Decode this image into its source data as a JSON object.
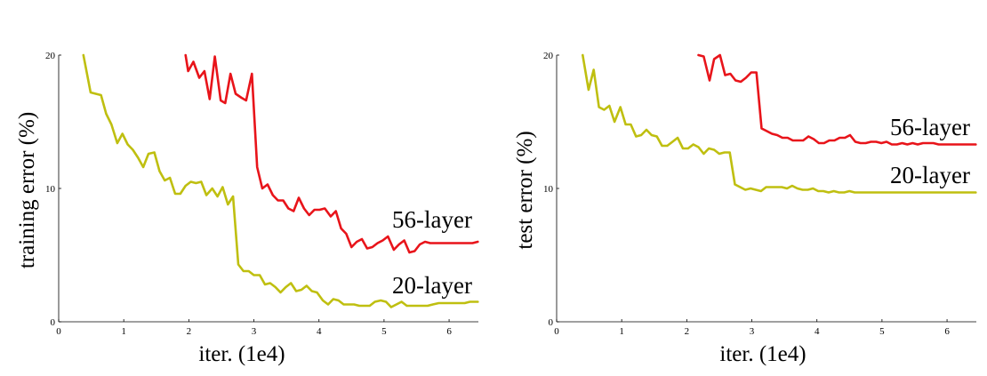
{
  "colors": {
    "56-layer": "#e8141a",
    "20-layer": "#bfbf10",
    "axis": "#000000"
  },
  "chart_data": [
    {
      "type": "line",
      "title": "",
      "xlabel": "iter. (1e4)",
      "ylabel": "training error (%)",
      "xlim": [
        0,
        6.45
      ],
      "ylim": [
        0,
        20
      ],
      "xticks": [
        "0",
        "1",
        "2",
        "3",
        "4",
        "5",
        "6"
      ],
      "yticks": [
        "0",
        "10",
        "20"
      ],
      "grid": false,
      "legend": "inline labels at right",
      "series": [
        {
          "name": "56-layer",
          "color": "#e8141a",
          "x": [
            1.95,
            1.99,
            2.07,
            2.16,
            2.24,
            2.32,
            2.4,
            2.49,
            2.56,
            2.64,
            2.72,
            2.81,
            2.88,
            2.97,
            3.05,
            3.13,
            3.21,
            3.29,
            3.37,
            3.45,
            3.53,
            3.61,
            3.69,
            3.77,
            3.85,
            3.93,
            4.01,
            4.09,
            4.18,
            4.26,
            4.34,
            4.42,
            4.5,
            4.58,
            4.66,
            4.74,
            4.82,
            4.9,
            4.98,
            5.06,
            5.15,
            5.23,
            5.31,
            5.39,
            5.47,
            5.55,
            5.63,
            5.71,
            5.8,
            5.88,
            5.96,
            6.04,
            6.12,
            6.2,
            6.28,
            6.36,
            6.44
          ],
          "y": [
            20.0,
            18.8,
            19.5,
            18.3,
            18.8,
            16.7,
            19.9,
            16.6,
            16.4,
            18.6,
            17.1,
            16.8,
            16.6,
            18.6,
            11.6,
            10.0,
            10.3,
            9.5,
            9.1,
            9.1,
            8.5,
            8.3,
            9.3,
            8.5,
            8.0,
            8.4,
            8.4,
            8.5,
            7.9,
            8.3,
            7.0,
            6.6,
            5.6,
            6.0,
            6.2,
            5.5,
            5.6,
            5.9,
            6.1,
            6.4,
            5.4,
            5.8,
            6.1,
            5.2,
            5.3,
            5.8,
            6.0,
            5.9,
            5.9,
            5.9,
            5.9,
            5.9,
            5.9,
            5.9,
            5.9,
            5.9,
            6.0
          ]
        },
        {
          "name": "20-layer",
          "color": "#bfbf10",
          "x": [
            0.38,
            0.49,
            0.57,
            0.65,
            0.73,
            0.81,
            0.9,
            0.98,
            1.06,
            1.14,
            1.22,
            1.3,
            1.38,
            1.47,
            1.55,
            1.63,
            1.71,
            1.79,
            1.87,
            1.95,
            2.03,
            2.11,
            2.19,
            2.27,
            2.36,
            2.44,
            2.52,
            2.6,
            2.68,
            2.76,
            2.84,
            2.92,
            3.0,
            3.09,
            3.17,
            3.25,
            3.33,
            3.41,
            3.49,
            3.57,
            3.65,
            3.73,
            3.81,
            3.89,
            3.97,
            4.06,
            4.14,
            4.22,
            4.3,
            4.38,
            4.46,
            4.54,
            4.62,
            4.7,
            4.78,
            4.86,
            4.95,
            5.03,
            5.11,
            5.19,
            5.27,
            5.35,
            5.43,
            5.51,
            5.59,
            5.67,
            5.75,
            5.84,
            5.92,
            6.0,
            6.08,
            6.16,
            6.24,
            6.32,
            6.44
          ],
          "y": [
            20.0,
            17.2,
            17.1,
            17.0,
            15.6,
            14.8,
            13.4,
            14.1,
            13.3,
            12.9,
            12.3,
            11.6,
            12.6,
            12.7,
            11.3,
            10.6,
            10.8,
            9.6,
            9.6,
            10.2,
            10.5,
            10.4,
            10.5,
            9.5,
            10.0,
            9.4,
            10.1,
            8.8,
            9.4,
            4.3,
            3.8,
            3.8,
            3.5,
            3.5,
            2.8,
            2.9,
            2.6,
            2.2,
            2.6,
            2.9,
            2.3,
            2.4,
            2.7,
            2.3,
            2.2,
            1.6,
            1.3,
            1.7,
            1.6,
            1.3,
            1.3,
            1.3,
            1.2,
            1.2,
            1.2,
            1.5,
            1.6,
            1.5,
            1.1,
            1.3,
            1.5,
            1.2,
            1.2,
            1.2,
            1.2,
            1.2,
            1.3,
            1.4,
            1.4,
            1.4,
            1.4,
            1.4,
            1.4,
            1.5,
            1.5
          ]
        }
      ]
    },
    {
      "type": "line",
      "title": "",
      "xlabel": "iter. (1e4)",
      "ylabel": "test error (%)",
      "xlim": [
        0,
        6.45
      ],
      "ylim": [
        0,
        20
      ],
      "xticks": [
        "0",
        "1",
        "2",
        "3",
        "4",
        "5",
        "6"
      ],
      "yticks": [
        "0",
        "10",
        "20"
      ],
      "grid": false,
      "legend": "inline labels at right",
      "series": [
        {
          "name": "56-layer",
          "color": "#e8141a",
          "x": [
            2.18,
            2.26,
            2.35,
            2.42,
            2.51,
            2.59,
            2.67,
            2.75,
            2.83,
            2.91,
            2.99,
            3.07,
            3.15,
            3.23,
            3.31,
            3.39,
            3.47,
            3.55,
            3.63,
            3.71,
            3.79,
            3.87,
            3.95,
            4.03,
            4.11,
            4.19,
            4.27,
            4.35,
            4.43,
            4.51,
            4.59,
            4.67,
            4.75,
            4.83,
            4.91,
            4.99,
            5.07,
            5.15,
            5.23,
            5.31,
            5.39,
            5.47,
            5.55,
            5.63,
            5.71,
            5.79,
            5.87,
            5.95,
            6.03,
            6.11,
            6.19,
            6.27,
            6.35,
            6.44
          ],
          "y": [
            20.0,
            19.9,
            18.1,
            19.7,
            20.0,
            18.5,
            18.6,
            18.1,
            18.0,
            18.3,
            18.7,
            18.7,
            14.5,
            14.3,
            14.1,
            14.0,
            13.8,
            13.8,
            13.6,
            13.6,
            13.6,
            13.9,
            13.7,
            13.4,
            13.4,
            13.6,
            13.6,
            13.8,
            13.8,
            14.0,
            13.5,
            13.4,
            13.4,
            13.5,
            13.5,
            13.4,
            13.5,
            13.3,
            13.3,
            13.4,
            13.3,
            13.4,
            13.3,
            13.4,
            13.4,
            13.4,
            13.3,
            13.3,
            13.3,
            13.3,
            13.3,
            13.3,
            13.3,
            13.3
          ]
        },
        {
          "name": "20-layer",
          "color": "#bfbf10",
          "x": [
            0.4,
            0.49,
            0.57,
            0.65,
            0.73,
            0.81,
            0.89,
            0.98,
            1.06,
            1.14,
            1.22,
            1.3,
            1.38,
            1.46,
            1.54,
            1.62,
            1.7,
            1.78,
            1.86,
            1.94,
            2.02,
            2.1,
            2.18,
            2.26,
            2.34,
            2.42,
            2.5,
            2.58,
            2.66,
            2.74,
            2.82,
            2.9,
            2.98,
            3.06,
            3.14,
            3.22,
            3.3,
            3.38,
            3.46,
            3.54,
            3.62,
            3.7,
            3.78,
            3.86,
            3.94,
            4.02,
            4.1,
            4.18,
            4.26,
            4.34,
            4.42,
            4.5,
            4.58,
            4.66,
            4.74,
            4.82,
            4.9,
            4.98,
            5.06,
            5.14,
            5.22,
            5.3,
            5.38,
            5.46,
            5.54,
            5.62,
            5.7,
            5.78,
            5.86,
            5.94,
            6.02,
            6.1,
            6.18,
            6.26,
            6.34,
            6.44
          ],
          "y": [
            20.0,
            17.4,
            18.9,
            16.1,
            15.9,
            16.2,
            15.0,
            16.1,
            14.8,
            14.8,
            13.9,
            14.0,
            14.4,
            14.0,
            13.9,
            13.2,
            13.2,
            13.5,
            13.8,
            13.0,
            13.0,
            13.3,
            13.1,
            12.6,
            13.0,
            12.9,
            12.6,
            12.7,
            12.7,
            10.3,
            10.1,
            9.9,
            10.0,
            9.9,
            9.8,
            10.1,
            10.1,
            10.1,
            10.1,
            10.0,
            10.2,
            10.0,
            9.9,
            9.9,
            10.0,
            9.8,
            9.8,
            9.7,
            9.8,
            9.7,
            9.7,
            9.8,
            9.7,
            9.7,
            9.7,
            9.7,
            9.7,
            9.7,
            9.7,
            9.7,
            9.7,
            9.7,
            9.7,
            9.7,
            9.7,
            9.7,
            9.7,
            9.7,
            9.7,
            9.7,
            9.7,
            9.7,
            9.7,
            9.7,
            9.7,
            9.7
          ]
        }
      ]
    }
  ]
}
